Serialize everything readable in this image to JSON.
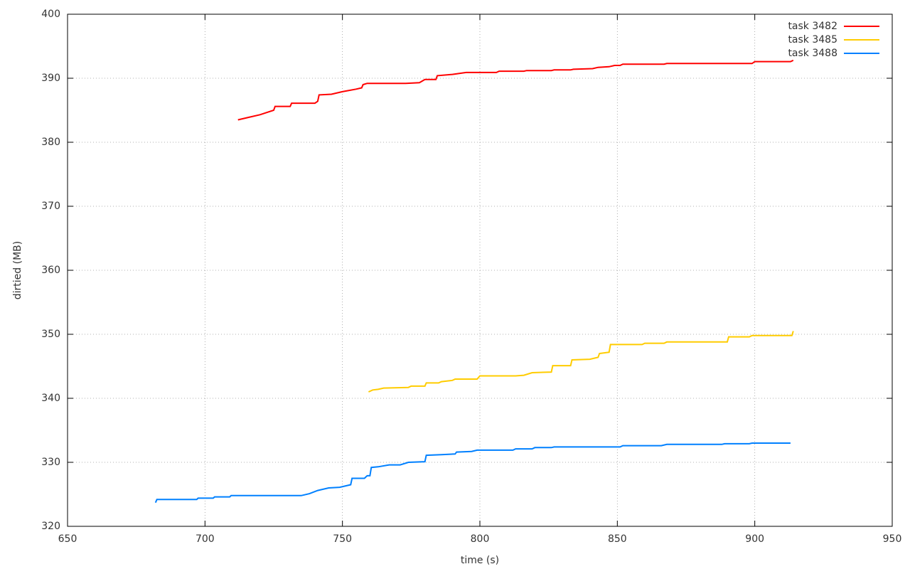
{
  "chart_data": {
    "type": "line",
    "x_label": "time (s)",
    "y_label": "dirtied (MB)",
    "xlim": [
      650,
      950
    ],
    "xticks": [
      650,
      700,
      750,
      800,
      850,
      900,
      950
    ],
    "ylim": [
      320,
      400
    ],
    "yticks": [
      320,
      330,
      340,
      350,
      360,
      370,
      380,
      390,
      400
    ],
    "grid": true,
    "legend": "top-right",
    "series": [
      {
        "name": "task 3482",
        "color": "#ff0000",
        "x": [
          712,
          716,
          720,
          725,
          725.5,
          731,
          731.5,
          740,
          741,
          741.5,
          746,
          750,
          755,
          757,
          757.5,
          759,
          773,
          778,
          780,
          784,
          784.5,
          790,
          795,
          806,
          807,
          816,
          817,
          826,
          827,
          833,
          834,
          841,
          843,
          847,
          849,
          851,
          852,
          867,
          868,
          899,
          900,
          913,
          914
        ],
        "values": [
          383.5,
          383.9,
          384.3,
          385.0,
          385.6,
          385.6,
          386.1,
          386.1,
          386.4,
          387.4,
          387.5,
          387.9,
          388.3,
          388.5,
          389.0,
          389.2,
          389.2,
          389.3,
          389.8,
          389.8,
          390.4,
          390.6,
          390.9,
          390.9,
          391.1,
          391.1,
          391.2,
          391.2,
          391.3,
          391.3,
          391.4,
          391.5,
          391.7,
          391.8,
          392.0,
          392.0,
          392.2,
          392.2,
          392.3,
          392.3,
          392.6,
          392.6,
          392.8
        ]
      },
      {
        "name": "task 3485",
        "color": "#ffcc00",
        "x": [
          759.5,
          761,
          763,
          765,
          774,
          775,
          780,
          780.5,
          785,
          786,
          790,
          791,
          799,
          800,
          813,
          816,
          819,
          826,
          826.5,
          833,
          833.5,
          840,
          843,
          843.5,
          847,
          847.5,
          859,
          860,
          867,
          868,
          890,
          890.5,
          898,
          899,
          913.5,
          914
        ],
        "values": [
          341.0,
          341.3,
          341.4,
          341.6,
          341.7,
          341.9,
          341.9,
          342.4,
          342.4,
          342.6,
          342.8,
          343.0,
          343.0,
          343.5,
          343.5,
          343.6,
          344.0,
          344.1,
          345.1,
          345.1,
          346.0,
          346.1,
          346.4,
          347.0,
          347.2,
          348.4,
          348.4,
          348.6,
          348.6,
          348.8,
          348.8,
          349.6,
          349.6,
          349.8,
          349.8,
          350.5
        ]
      },
      {
        "name": "task 3488",
        "color": "#0080ff",
        "x": [
          682,
          682.5,
          697,
          697.5,
          703,
          703.5,
          709,
          709.5,
          735,
          738,
          741,
          745,
          749,
          753,
          753.5,
          758,
          759,
          760,
          760.5,
          763,
          767,
          771,
          774,
          780,
          780.5,
          786,
          791,
          791.5,
          797,
          799,
          812,
          813,
          819,
          820,
          826,
          827,
          851,
          852,
          866,
          868,
          888,
          889,
          898,
          899,
          913
        ],
        "values": [
          323.7,
          324.2,
          324.2,
          324.4,
          324.4,
          324.6,
          324.6,
          324.8,
          324.8,
          325.1,
          325.6,
          326.0,
          326.1,
          326.5,
          327.5,
          327.5,
          327.9,
          327.9,
          329.2,
          329.3,
          329.6,
          329.6,
          330.0,
          330.1,
          331.1,
          331.2,
          331.3,
          331.6,
          331.7,
          331.9,
          331.9,
          332.1,
          332.1,
          332.3,
          332.3,
          332.4,
          332.4,
          332.6,
          332.6,
          332.8,
          332.8,
          332.9,
          332.9,
          333.0,
          333.0
        ]
      }
    ]
  }
}
